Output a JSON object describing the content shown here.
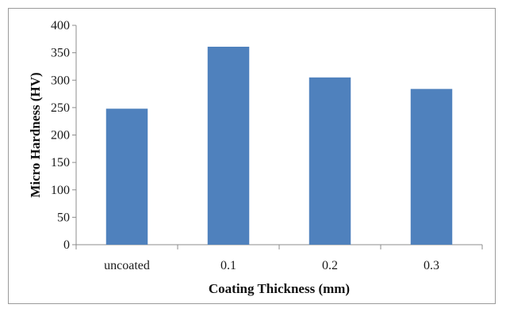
{
  "chart_data": {
    "type": "bar",
    "categories": [
      "uncoated",
      "0.1",
      "0.2",
      "0.3"
    ],
    "values": [
      248,
      361,
      305,
      284
    ],
    "xlabel": "Coating Thickness (mm)",
    "ylabel": "Micro Hardness (HV)",
    "ylim": [
      0,
      400
    ],
    "yticks": [
      0,
      50,
      100,
      150,
      200,
      250,
      300,
      350,
      400
    ],
    "grid": false,
    "legend": "none",
    "bar_color": "#4f81bd"
  }
}
